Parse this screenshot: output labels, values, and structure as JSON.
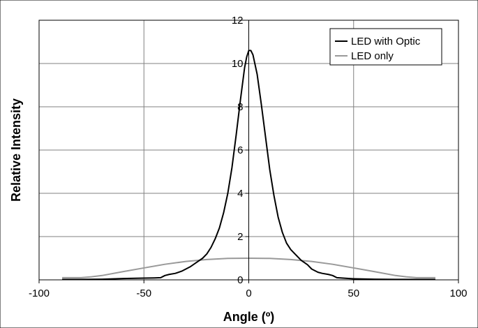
{
  "chart_data": {
    "type": "line",
    "title": "",
    "xlabel": "Angle (º)",
    "ylabel": "Relative Intensity",
    "xlim": [
      -100,
      100
    ],
    "ylim": [
      0,
      12
    ],
    "x_ticks": [
      -100,
      -50,
      0,
      50,
      100
    ],
    "y_ticks": [
      0,
      2,
      4,
      6,
      8,
      10,
      12
    ],
    "x_tick_labels": [
      "-100",
      "-50",
      "0",
      "50",
      "100"
    ],
    "y_tick_labels": [
      "0",
      "2",
      "4",
      "6",
      "8",
      "10",
      "12"
    ],
    "grid": true,
    "legend_position": "top-right",
    "series": [
      {
        "name": "LED with Optic",
        "color": "#000000",
        "x": [
          -89,
          -80,
          -70,
          -60,
          -50,
          -45,
          -42,
          -40,
          -38,
          -35,
          -32,
          -30,
          -28,
          -25,
          -22,
          -20,
          -18,
          -16,
          -14,
          -12,
          -10,
          -8,
          -6,
          -4,
          -2,
          -1,
          0,
          1,
          2,
          4,
          6,
          8,
          10,
          12,
          14,
          16,
          18,
          20,
          22,
          25,
          28,
          30,
          33,
          35,
          38,
          40,
          42,
          45,
          50,
          60,
          70,
          80,
          89
        ],
        "y": [
          0.02,
          0.02,
          0.03,
          0.06,
          0.08,
          0.09,
          0.1,
          0.2,
          0.25,
          0.3,
          0.4,
          0.5,
          0.6,
          0.8,
          1.0,
          1.2,
          1.5,
          1.9,
          2.4,
          3.1,
          4.0,
          5.2,
          6.7,
          8.3,
          9.8,
          10.3,
          10.6,
          10.6,
          10.4,
          9.5,
          8.1,
          6.6,
          5.1,
          3.9,
          2.9,
          2.2,
          1.7,
          1.4,
          1.2,
          0.9,
          0.7,
          0.5,
          0.35,
          0.3,
          0.25,
          0.2,
          0.1,
          0.08,
          0.05,
          0.03,
          0.02,
          0.02,
          0.02
        ]
      },
      {
        "name": "LED only",
        "color": "#999999",
        "x": [
          -89,
          -80,
          -75,
          -70,
          -60,
          -50,
          -40,
          -30,
          -20,
          -10,
          0,
          10,
          20,
          30,
          40,
          50,
          60,
          70,
          75,
          80,
          89
        ],
        "y": [
          0.1,
          0.1,
          0.14,
          0.2,
          0.38,
          0.55,
          0.72,
          0.85,
          0.94,
          0.99,
          1.0,
          0.99,
          0.94,
          0.85,
          0.72,
          0.55,
          0.38,
          0.2,
          0.14,
          0.1,
          0.1
        ]
      }
    ]
  }
}
